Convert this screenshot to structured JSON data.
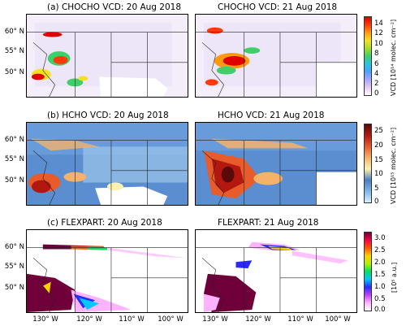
{
  "panels": [
    {
      "id": "a-left",
      "title": "(a) CHOCHO VCD: 20 Aug 2018"
    },
    {
      "id": "a-right",
      "title": "CHOCHO VCD: 21 Aug 2018"
    },
    {
      "id": "b-left",
      "title": "(b) HCHO VCD: 20 Aug 2018"
    },
    {
      "id": "b-right",
      "title": "HCHO VCD: 21 Aug 2018"
    },
    {
      "id": "c-left",
      "title": "(c) FLEXPART: 20 Aug 2018"
    },
    {
      "id": "c-right",
      "title": "FLEXPART: 21 Aug 2018"
    }
  ],
  "lat_labels": [
    "60° N",
    "55° N",
    "50° N"
  ],
  "lon_labels": [
    "130° W",
    "120° W",
    "110° W",
    "100° W"
  ],
  "colorbars": [
    {
      "ticks": [
        "14",
        "12",
        "10",
        "8",
        "6",
        "4",
        "2",
        "0"
      ],
      "label": "VCD [10¹⁴ molec. cm⁻²]"
    },
    {
      "ticks": [
        "25",
        "20",
        "15",
        "10",
        "5",
        "0"
      ],
      "label": "VCD [10¹⁵ molec. cm⁻²]"
    },
    {
      "ticks": [
        "3.0",
        "2.5",
        "2.0",
        "1.5",
        "1.0",
        "0.5",
        "0.0"
      ],
      "label": "[10⁵ a.u.]"
    }
  ],
  "colors": {
    "chocho_gradient": [
      "#ffffff",
      "#e6c8f0",
      "#a6a6ff",
      "#4ea0ff",
      "#27c6e0",
      "#3fce6a",
      "#a6dd2b",
      "#f5e21e",
      "#ff9a10",
      "#ff3a08",
      "#e00000"
    ],
    "hcho_gradient": [
      "#d9f0ff",
      "#7fb7e8",
      "#4a7fc4",
      "#fff2b0",
      "#f6b26b",
      "#e85c2c",
      "#b2180f",
      "#5a0a0a"
    ],
    "flex_gradient": [
      "#ffffff",
      "#ffb3ff",
      "#c040ff",
      "#2a2aff",
      "#00c8ff",
      "#00e060",
      "#b0f000",
      "#ffd000",
      "#ff5a00",
      "#ff0040",
      "#70003a"
    ]
  }
}
